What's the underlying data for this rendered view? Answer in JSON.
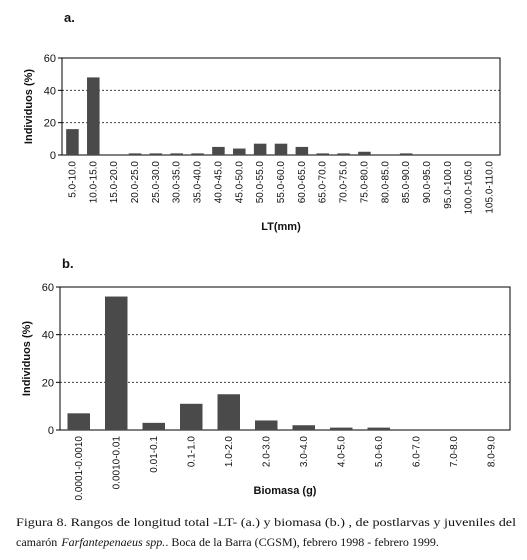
{
  "chart_data": [
    {
      "type": "bar",
      "panel": "a.",
      "y_label": "Individuos (%)",
      "x_label": "LT(mm)",
      "categories": [
        "5.0-10.0",
        "10.0-15.0",
        "15.0-20.0",
        "20.0-25.0",
        "25.0-30.0",
        "30.0-35.0",
        "35.0-40.0",
        "40.0-45.0",
        "45.0-50.0",
        "50.0-55.0",
        "55.0-60.0",
        "60.0-65.0",
        "65.0-70.0",
        "70.0-75.0",
        "75.0-80.0",
        "80.0-85.0",
        "85.0-90.0",
        "90.0-95.0",
        "95.0-100.0",
        "100.0-105.0",
        "105.0-110.0"
      ],
      "values": [
        16,
        48,
        0,
        1,
        1,
        1,
        1,
        5,
        4,
        7,
        7,
        5,
        1,
        1,
        2,
        0,
        1,
        0,
        0,
        0,
        0
      ],
      "color": "#4a4a4a",
      "ylim": [
        0,
        60
      ],
      "yticks": [
        0,
        20,
        40,
        60
      ],
      "grid": true
    },
    {
      "type": "bar",
      "panel": "b.",
      "y_label": "Individuos (%)",
      "x_label": "Biomasa (g)",
      "categories": [
        "0.0001-0.0010",
        "0.0010-0.01",
        "0.01-0.1",
        "0.1-1.0",
        "1.0-2.0",
        "2.0-3.0",
        "3.0-4.0",
        "4.0-5.0",
        "5.0-6.0",
        "6.0-7.0",
        "7.0-8.0",
        "8.0-9.0"
      ],
      "values": [
        7,
        56,
        3,
        11,
        15,
        4,
        2,
        1,
        1,
        0,
        0,
        0
      ],
      "color": "#4a4a4a",
      "ylim": [
        0,
        60
      ],
      "yticks": [
        0,
        20,
        40,
        60
      ],
      "grid": true
    }
  ],
  "caption": {
    "line1": "Figura 8. Rangos de longitud total -LT- (a.) y  biomasa (b.) , de postlarvas y juveniles del",
    "line2_start": "camarón",
    "species": "Farfantepenaeus spp.",
    "line2_end": ". Boca de la Barra (CGSM), febrero 1998 - febrero 1999."
  }
}
